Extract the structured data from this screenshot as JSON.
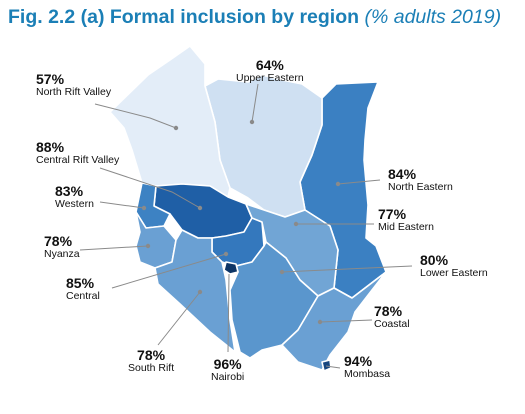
{
  "title": {
    "main": "Fig. 2.2 (a) Formal inclusion by region",
    "sub": "(% adults 2019)"
  },
  "colors": {
    "title": "#1b7fb6",
    "scale_lightest": "#e3edf8",
    "scale_darkest": "#0d3566",
    "leader_line": "#8a8a8a",
    "border": "#ffffff"
  },
  "regions": [
    {
      "id": "north-rift-valley",
      "name": "North Rift Valley",
      "value": "57%",
      "fill": "#e3edf8"
    },
    {
      "id": "upper-eastern",
      "name": "Upper Eastern",
      "value": "64%",
      "fill": "#cfe0f2"
    },
    {
      "id": "central-rift-valley",
      "name": "Central Rift Valley",
      "value": "88%",
      "fill": "#1f5fa6"
    },
    {
      "id": "western",
      "name": "Western",
      "value": "83%",
      "fill": "#3d82c3"
    },
    {
      "id": "nyanza",
      "name": "Nyanza",
      "value": "78%",
      "fill": "#6aa0d3"
    },
    {
      "id": "central",
      "name": "Central",
      "value": "85%",
      "fill": "#3478bd"
    },
    {
      "id": "south-rift",
      "name": "South Rift",
      "value": "78%",
      "fill": "#6aa0d3"
    },
    {
      "id": "nairobi",
      "name": "Nairobi",
      "value": "96%",
      "fill": "#0d3566"
    },
    {
      "id": "north-eastern",
      "name": "North Eastern",
      "value": "84%",
      "fill": "#3b80c2"
    },
    {
      "id": "mid-eastern",
      "name": "Mid Eastern",
      "value": "77%",
      "fill": "#71a5d5"
    },
    {
      "id": "lower-eastern",
      "name": "Lower Eastern",
      "value": "80%",
      "fill": "#5a96cd"
    },
    {
      "id": "coastal",
      "name": "Coastal",
      "value": "78%",
      "fill": "#6aa0d3"
    },
    {
      "id": "mombasa",
      "name": "Mombasa",
      "value": "94%",
      "fill": "#16467f"
    }
  ]
}
